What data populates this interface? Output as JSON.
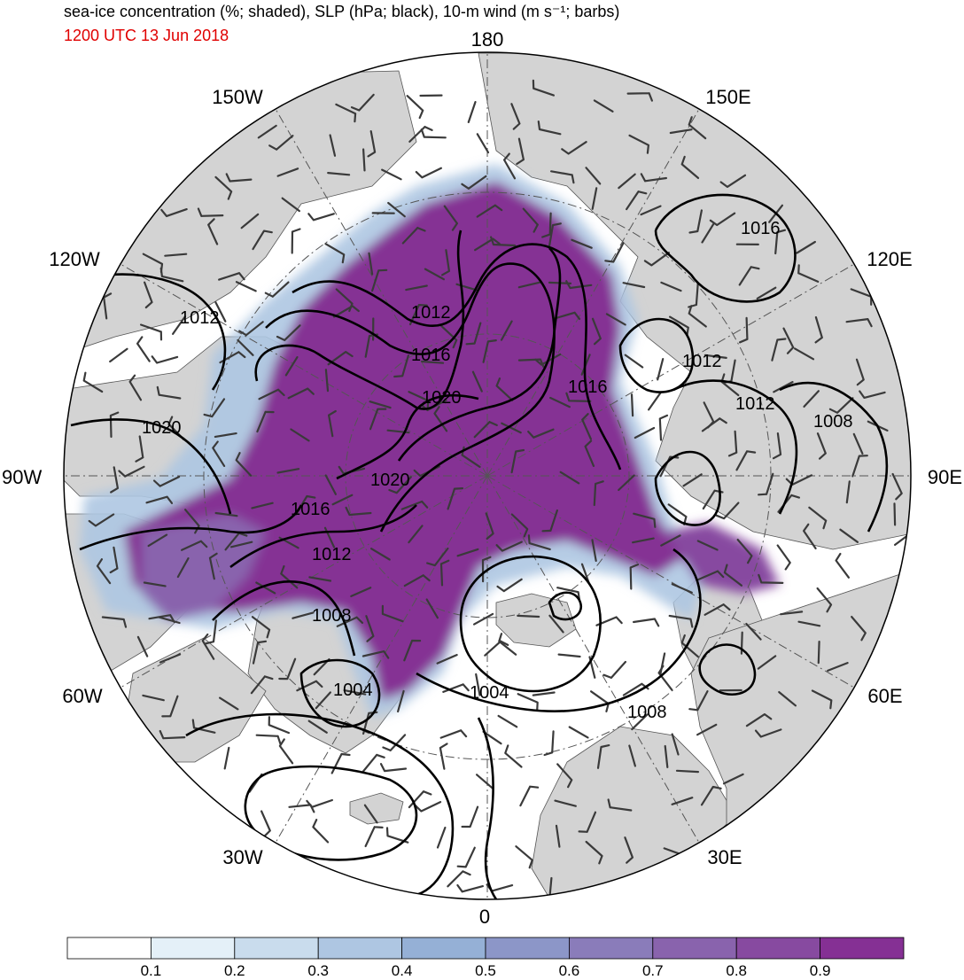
{
  "header": {
    "title": "sea-ice concentration (%; shaded), SLP (hPa; black), 10-m wind (m s⁻¹; barbs)",
    "datetime": "1200 UTC 13 Jun 2018"
  },
  "longitude_labels": {
    "lon_180": "180",
    "lon_150w": "150W",
    "lon_150e": "150E",
    "lon_120w": "120W",
    "lon_120e": "120E",
    "lon_90w": "90W",
    "lon_90e": "90E",
    "lon_60w": "60W",
    "lon_60e": "60E",
    "lon_30w": "30W",
    "lon_30e": "30E",
    "lon_0": "0"
  },
  "isobar_labels": {
    "p1": "1012",
    "p2": "1016",
    "p3": "1020",
    "p4": "1020",
    "p5": "1016",
    "p6": "1012",
    "p7": "1020",
    "p8": "1016",
    "p9": "1012",
    "p10": "1008",
    "p11": "1004",
    "p12": "1004",
    "p13": "1008",
    "p14": "1016",
    "p15": "1012",
    "p16": "1012",
    "p17": "1008"
  },
  "colorbar": {
    "colors": [
      "#ffffff",
      "#e4f0f8",
      "#c9dced",
      "#aec6e2",
      "#95b0d6",
      "#8c96c8",
      "#8a7cba",
      "#8963ad",
      "#874aa0",
      "#853094"
    ],
    "ticks": [
      "0.1",
      "0.2",
      "0.3",
      "0.4",
      "0.5",
      "0.6",
      "0.7",
      "0.8",
      "0.9"
    ]
  },
  "colors": {
    "land": "#d3d3d3",
    "ocean": "#ffffff",
    "ice_core": "#853094",
    "isobar": "#000000",
    "barb": "#3a3a3a",
    "datetime": "#e00000"
  }
}
